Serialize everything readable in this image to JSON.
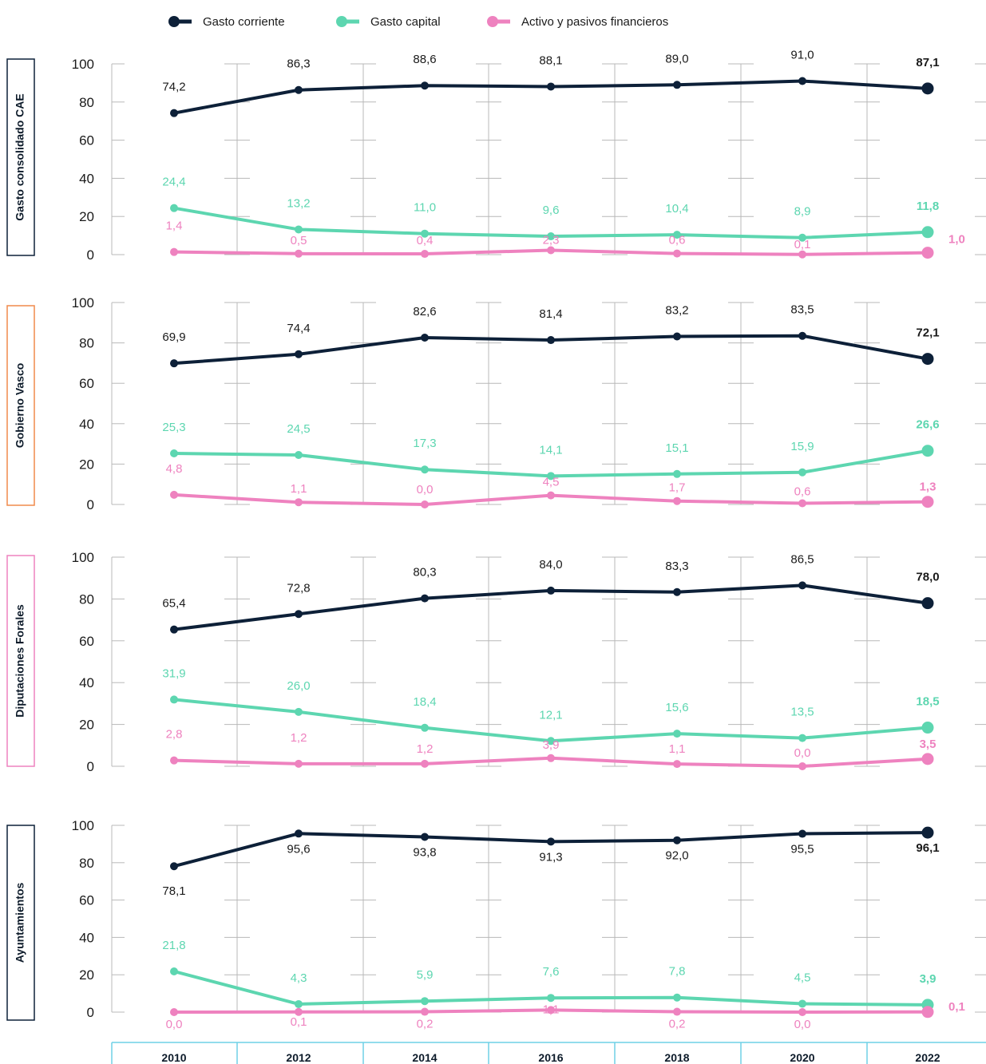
{
  "chart_data": {
    "type": "line",
    "x": [
      "2010",
      "2012",
      "2014",
      "2016",
      "2018",
      "2020",
      "2022"
    ],
    "ylim": [
      0,
      100
    ],
    "yticks": [
      0,
      20,
      40,
      60,
      80,
      100
    ],
    "legend": {
      "placement": "top",
      "items": [
        {
          "name": "Gasto corriente",
          "color": "#0d2038"
        },
        {
          "name": "Gasto capital",
          "color": "#5dd6b0"
        },
        {
          "name": "Activo y pasivos financieros",
          "color": "#ee82bf"
        }
      ]
    },
    "panels": [
      {
        "title": "Gasto consolidado CAE",
        "border_color": "#0d2038",
        "series": [
          {
            "name": "Gasto corriente",
            "values": [
              74.2,
              86.3,
              88.6,
              88.1,
              89.0,
              91.0,
              87.1
            ],
            "labels": [
              "74,2",
              "86,3",
              "88,6",
              "88,1",
              "89,0",
              "91,0",
              "87,1"
            ]
          },
          {
            "name": "Gasto capital",
            "values": [
              24.4,
              13.2,
              11.0,
              9.6,
              10.4,
              8.9,
              11.8
            ],
            "labels": [
              "24,4",
              "13,2",
              "11,0",
              "9,6",
              "10,4",
              "8,9",
              "11,8"
            ]
          },
          {
            "name": "Activo y pasivos financieros",
            "values": [
              1.4,
              0.5,
              0.4,
              2.3,
              0.6,
              0.1,
              1.0
            ],
            "labels": [
              "1,4",
              "0,5",
              "0,4",
              "2,3",
              "0,6",
              "0,1",
              "1,0"
            ]
          }
        ]
      },
      {
        "title": "Gobierno Vasco",
        "border_color": "#f08a4b",
        "series": [
          {
            "name": "Gasto corriente",
            "values": [
              69.9,
              74.4,
              82.6,
              81.4,
              83.2,
              83.5,
              72.1
            ],
            "labels": [
              "69,9",
              "74,4",
              "82,6",
              "81,4",
              "83,2",
              "83,5",
              "72,1"
            ]
          },
          {
            "name": "Gasto capital",
            "values": [
              25.3,
              24.5,
              17.3,
              14.1,
              15.1,
              15.9,
              26.6
            ],
            "labels": [
              "25,3",
              "24,5",
              "17,3",
              "14,1",
              "15,1",
              "15,9",
              "26,6"
            ]
          },
          {
            "name": "Activo y pasivos financieros",
            "values": [
              4.8,
              1.1,
              0.0,
              4.5,
              1.7,
              0.6,
              1.3
            ],
            "labels": [
              "4,8",
              "1,1",
              "0,0",
              "4,5",
              "1,7",
              "0,6",
              "1,3"
            ]
          }
        ]
      },
      {
        "title": "Diputaciones Forales",
        "border_color": "#ee82bf",
        "series": [
          {
            "name": "Gasto corriente",
            "values": [
              65.4,
              72.8,
              80.3,
              84.0,
              83.3,
              86.5,
              78.0
            ],
            "labels": [
              "65,4",
              "72,8",
              "80,3",
              "84,0",
              "83,3",
              "86,5",
              "78,0"
            ]
          },
          {
            "name": "Gasto capital",
            "values": [
              31.9,
              26.0,
              18.4,
              12.1,
              15.6,
              13.5,
              18.5
            ],
            "labels": [
              "31,9",
              "26,0",
              "18,4",
              "12,1",
              "15,6",
              "13,5",
              "18,5"
            ]
          },
          {
            "name": "Activo y pasivos financieros",
            "values": [
              2.8,
              1.2,
              1.2,
              3.9,
              1.1,
              0.0,
              3.5
            ],
            "labels": [
              "2,8",
              "1,2",
              "1,2",
              "3,9",
              "1,1",
              "0,0",
              "3,5"
            ]
          }
        ]
      },
      {
        "title": "Ayuntamientos",
        "border_color": "#0d2038",
        "series": [
          {
            "name": "Gasto corriente",
            "values": [
              78.1,
              95.6,
              93.8,
              91.3,
              92.0,
              95.5,
              96.1
            ],
            "labels": [
              "78,1",
              "95,6",
              "93,8",
              "91,3",
              "92,0",
              "95,5",
              "96,1"
            ]
          },
          {
            "name": "Gasto capital",
            "values": [
              21.8,
              4.3,
              5.9,
              7.6,
              7.8,
              4.5,
              3.9
            ],
            "labels": [
              "21,8",
              "4,3",
              "5,9",
              "7,6",
              "7,8",
              "4,5",
              "3,9"
            ]
          },
          {
            "name": "Activo y pasivos financieros",
            "values": [
              0.0,
              0.1,
              0.2,
              1.1,
              0.2,
              0.0,
              0.1
            ],
            "labels": [
              "0,0",
              "0,1",
              "0,2",
              "1,1",
              "0,2",
              "0,0",
              "0,1"
            ]
          }
        ]
      }
    ]
  }
}
